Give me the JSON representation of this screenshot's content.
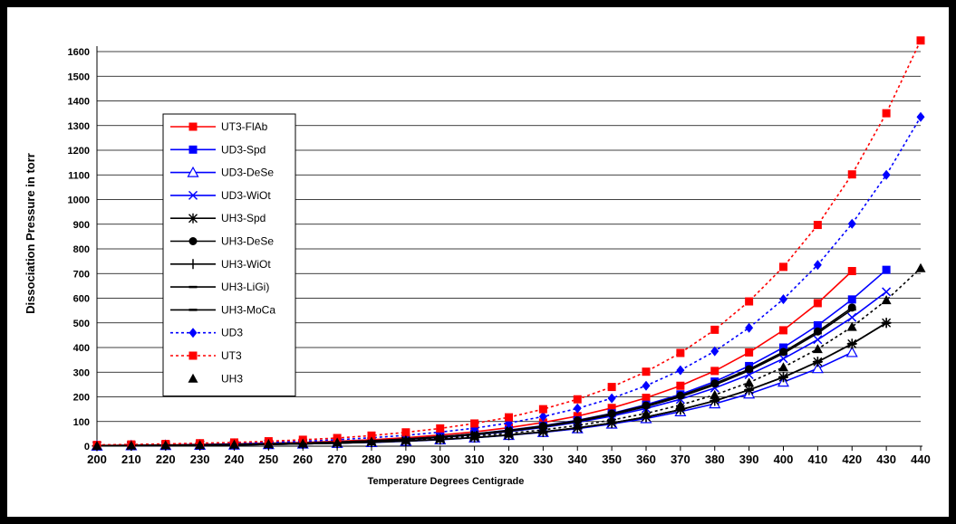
{
  "chart_data": {
    "type": "scatter",
    "title": "",
    "xlabel": "Temperature Degrees Centigrade",
    "ylabel": "Dissociation Pressure in torr",
    "xlim": [
      200,
      440
    ],
    "ylim": [
      0,
      1600
    ],
    "xticks": [
      200,
      210,
      220,
      230,
      240,
      250,
      260,
      270,
      280,
      290,
      300,
      310,
      320,
      330,
      340,
      350,
      360,
      370,
      380,
      390,
      400,
      410,
      420,
      430,
      440
    ],
    "yticks": [
      0,
      100,
      200,
      300,
      400,
      500,
      600,
      700,
      800,
      900,
      1000,
      1100,
      1200,
      1300,
      1400,
      1500,
      1600
    ],
    "grid": true,
    "legend_position": "left",
    "series": [
      {
        "name": "UT3-FlAb",
        "color": "#ff0000",
        "kind": "line-markers",
        "marker": "square",
        "dash": "solid",
        "x": [
          200,
          210,
          220,
          230,
          240,
          250,
          260,
          270,
          280,
          290,
          300,
          310,
          320,
          330,
          340,
          350,
          360,
          370,
          380,
          390,
          400,
          410,
          420
        ],
        "y": [
          3,
          4,
          5,
          7,
          9,
          12,
          15,
          20,
          26,
          34,
          45,
          58,
          75,
          96,
          122,
          155,
          196,
          245,
          305,
          380,
          470,
          580,
          710
        ]
      },
      {
        "name": "UD3-Spd",
        "color": "#0000ff",
        "kind": "line-markers",
        "marker": "square",
        "dash": "solid",
        "x": [
          200,
          210,
          220,
          230,
          240,
          250,
          260,
          270,
          280,
          290,
          300,
          310,
          320,
          330,
          340,
          350,
          360,
          370,
          380,
          390,
          400,
          410,
          420,
          430
        ],
        "y": [
          2,
          3,
          4,
          6,
          8,
          10,
          13,
          17,
          22,
          29,
          38,
          50,
          65,
          83,
          105,
          133,
          168,
          210,
          262,
          325,
          400,
          490,
          595,
          715
        ]
      },
      {
        "name": "UD3-DeSe",
        "color": "#0000ff",
        "kind": "line-markers",
        "marker": "triangle-open",
        "dash": "solid",
        "x": [
          200,
          210,
          220,
          230,
          240,
          250,
          260,
          270,
          280,
          290,
          300,
          310,
          320,
          330,
          340,
          350,
          360,
          370,
          380,
          390,
          400,
          410,
          420
        ],
        "y": [
          1,
          2,
          3,
          4,
          5,
          7,
          9,
          12,
          15,
          20,
          26,
          34,
          44,
          56,
          71,
          90,
          112,
          140,
          172,
          212,
          260,
          315,
          380
        ]
      },
      {
        "name": "UD3-WiOt",
        "color": "#0000ff",
        "kind": "line-markers",
        "marker": "x",
        "dash": "solid",
        "x": [
          200,
          210,
          220,
          230,
          240,
          250,
          260,
          270,
          280,
          290,
          300,
          310,
          320,
          330,
          340,
          350,
          360,
          370,
          380,
          390,
          400,
          410,
          420,
          430
        ],
        "y": [
          2,
          3,
          4,
          5,
          7,
          9,
          12,
          16,
          21,
          27,
          35,
          46,
          59,
          76,
          97,
          122,
          153,
          190,
          236,
          290,
          355,
          432,
          522,
          626
        ]
      },
      {
        "name": "UH3-Spd",
        "color": "#000000",
        "kind": "line-markers",
        "marker": "asterisk",
        "dash": "solid",
        "x": [
          200,
          210,
          220,
          230,
          240,
          250,
          260,
          270,
          280,
          290,
          300,
          310,
          320,
          330,
          340,
          350,
          360,
          370,
          380,
          390,
          400,
          410,
          420,
          430
        ],
        "y": [
          1,
          2,
          3,
          4,
          5,
          7,
          9,
          12,
          16,
          21,
          27,
          35,
          45,
          58,
          74,
          94,
          118,
          148,
          184,
          228,
          280,
          342,
          415,
          500
        ]
      },
      {
        "name": "UH3-DeSe",
        "color": "#000000",
        "kind": "line-markers",
        "marker": "circle",
        "dash": "solid",
        "x": [
          200,
          210,
          220,
          230,
          240,
          250,
          260,
          270,
          280,
          290,
          300,
          310,
          320,
          330,
          340,
          350,
          360,
          370,
          380,
          390,
          400,
          410,
          420
        ],
        "y": [
          2,
          3,
          4,
          6,
          8,
          10,
          13,
          17,
          22,
          29,
          38,
          50,
          64,
          82,
          104,
          132,
          165,
          205,
          254,
          312,
          382,
          465,
          562
        ]
      },
      {
        "name": "UH3-WiOt",
        "color": "#000000",
        "kind": "line-markers",
        "marker": "plus",
        "dash": "solid",
        "x": [
          200,
          210,
          220,
          230,
          240,
          250,
          260,
          270,
          280,
          290,
          300,
          310,
          320,
          330,
          340,
          350,
          360,
          370,
          380,
          390,
          400,
          410,
          420,
          430
        ],
        "y": [
          1,
          2,
          3,
          4,
          5,
          7,
          9,
          12,
          16,
          21,
          27,
          35,
          45,
          58,
          74,
          94,
          118,
          148,
          184,
          228,
          280,
          342,
          415,
          500
        ]
      },
      {
        "name": "UH3-LiGi)",
        "color": "#000000",
        "kind": "line-markers",
        "marker": "dash",
        "dash": "solid",
        "x": [
          200,
          210,
          220,
          230,
          240,
          250,
          260,
          270,
          280,
          290,
          300,
          310,
          320,
          330,
          340,
          350,
          360,
          370,
          380,
          390,
          400,
          410,
          420
        ],
        "y": [
          2,
          3,
          4,
          5,
          7,
          9,
          12,
          16,
          21,
          28,
          36,
          47,
          61,
          78,
          100,
          127,
          160,
          200,
          248,
          306,
          376,
          458,
          554
        ]
      },
      {
        "name": "UH3-MoCa",
        "color": "#000000",
        "kind": "line-markers",
        "marker": "dash",
        "dash": "solid",
        "x": [
          200,
          210,
          220,
          230,
          240,
          250,
          260,
          270,
          280,
          290,
          300,
          310,
          320,
          330,
          340,
          350,
          360,
          370,
          380,
          390,
          400,
          410,
          420,
          430
        ],
        "y": [
          1,
          2,
          3,
          4,
          5,
          7,
          9,
          12,
          16,
          21,
          27,
          35,
          45,
          58,
          74,
          94,
          118,
          148,
          184,
          228,
          280,
          342,
          415,
          500
        ]
      },
      {
        "name": "UD3",
        "color": "#0000ff",
        "kind": "dotted-markers",
        "marker": "diamond",
        "dash": "dotted",
        "x": [
          200,
          210,
          220,
          230,
          240,
          250,
          260,
          270,
          280,
          290,
          300,
          310,
          320,
          330,
          340,
          350,
          360,
          370,
          380,
          390,
          400,
          410,
          420,
          430,
          440
        ],
        "y": [
          4,
          5,
          7,
          9,
          12,
          15,
          20,
          26,
          34,
          44,
          57,
          73,
          94,
          120,
          153,
          194,
          245,
          308,
          385,
          480,
          596,
          735,
          902,
          1100,
          1335
        ]
      },
      {
        "name": "UT3",
        "color": "#ff0000",
        "kind": "dotted-markers",
        "marker": "square",
        "dash": "dotted",
        "x": [
          200,
          210,
          220,
          230,
          240,
          250,
          260,
          270,
          280,
          290,
          300,
          310,
          320,
          330,
          340,
          350,
          360,
          370,
          380,
          390,
          400,
          410,
          420,
          430,
          440
        ],
        "y": [
          5,
          7,
          9,
          12,
          15,
          20,
          26,
          33,
          43,
          56,
          72,
          92,
          117,
          150,
          190,
          240,
          302,
          378,
          472,
          587,
          727,
          897,
          1102,
          1350,
          1645
        ]
      },
      {
        "name": "UH3",
        "color": "#000000",
        "kind": "dotted-markers",
        "marker": "triangle",
        "dash": "dotted",
        "x": [
          200,
          210,
          220,
          230,
          240,
          250,
          260,
          270,
          280,
          290,
          300,
          310,
          320,
          330,
          340,
          350,
          360,
          370,
          380,
          390,
          400,
          410,
          420,
          430,
          440
        ],
        "y": [
          2,
          3,
          4,
          5,
          7,
          9,
          11,
          15,
          19,
          25,
          32,
          41,
          52,
          66,
          84,
          106,
          133,
          167,
          208,
          258,
          320,
          394,
          484,
          592,
          722
        ]
      }
    ]
  }
}
